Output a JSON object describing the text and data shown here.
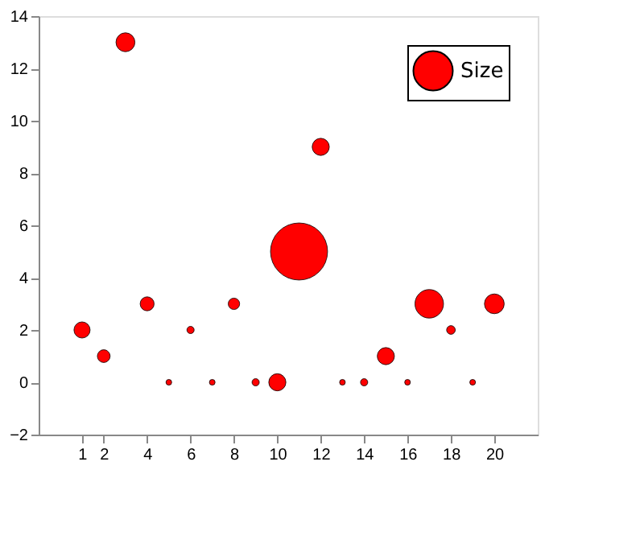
{
  "chart_data": {
    "type": "bubble",
    "x": [
      1,
      2,
      3,
      4,
      5,
      6,
      7,
      8,
      9,
      10,
      11,
      12,
      13,
      14,
      15,
      16,
      17,
      18,
      19,
      20
    ],
    "series": [
      {
        "name": "Size",
        "color": "#ff0000",
        "values": [
          2,
          1,
          13,
          3,
          0,
          2,
          0,
          3,
          0,
          0,
          5,
          9,
          0,
          0,
          1,
          0,
          3,
          2,
          0,
          3
        ],
        "sizes": [
          0.08,
          0.05,
          0.11,
          0.06,
          0.01,
          0.016,
          0.01,
          0.04,
          0.016,
          0.09,
          1,
          0.09,
          0.01,
          0.016,
          0.09,
          0.01,
          0.25,
          0.023,
          0.01,
          0.12
        ]
      }
    ],
    "xlim": [
      -1,
      22
    ],
    "xticks": [
      1,
      2,
      4,
      6,
      8,
      10,
      12,
      14,
      16,
      18,
      20
    ],
    "ylim": [
      -2,
      14
    ],
    "yticks": [
      -2,
      0,
      2,
      4,
      6,
      8,
      10,
      12,
      14
    ],
    "grid": false,
    "legend": "top right"
  }
}
